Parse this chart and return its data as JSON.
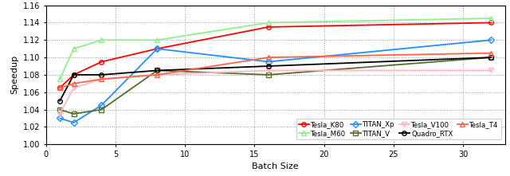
{
  "x": [
    1,
    2,
    4,
    8,
    16,
    32
  ],
  "series": {
    "Tesla_K80": {
      "y": [
        1.065,
        1.08,
        1.095,
        1.11,
        1.135,
        1.14
      ],
      "color": "#ff0000",
      "marker": "o",
      "linewidth": 1.3,
      "markersize": 4
    },
    "Tesla_M60": {
      "y": [
        1.075,
        1.11,
        1.12,
        1.12,
        1.14,
        1.145
      ],
      "color": "#90ee90",
      "marker": "^",
      "linewidth": 1.3,
      "markersize": 4
    },
    "TITAN_Xp": {
      "y": [
        1.03,
        1.025,
        1.045,
        1.11,
        1.095,
        1.12
      ],
      "color": "#1e90ff",
      "marker": "D",
      "linewidth": 1.3,
      "markersize": 4
    },
    "TITAN_V": {
      "y": [
        1.04,
        1.035,
        1.04,
        1.085,
        1.08,
        1.1
      ],
      "color": "#556b2f",
      "marker": "s",
      "linewidth": 1.3,
      "markersize": 4
    },
    "Tesla_V100": {
      "y": [
        1.035,
        1.065,
        1.075,
        1.08,
        1.085,
        1.085
      ],
      "color": "#ffb6c1",
      "marker": "v",
      "linewidth": 1.3,
      "markersize": 4
    },
    "Quadro_RTX": {
      "y": [
        1.05,
        1.08,
        1.08,
        1.085,
        1.09,
        1.1
      ],
      "color": "#000000",
      "marker": "o",
      "linewidth": 1.3,
      "markersize": 4
    },
    "Tesla_T4": {
      "y": [
        1.065,
        1.07,
        1.075,
        1.08,
        1.1,
        1.105
      ],
      "color": "#ff6347",
      "marker": "^",
      "linewidth": 1.3,
      "markersize": 4
    }
  },
  "legend_row1": [
    "Tesla_K80",
    "Tesla_M60",
    "TITAN_Xp",
    "TITAN_V"
  ],
  "legend_row2": [
    "Tesla_V100",
    "Quadro_RTX",
    "Tesla_T4"
  ],
  "legend_labels": {
    "Tesla_K80": "Tesla_K80",
    "Tesla_M60": "Tesla_M60",
    "TITAN_Xp": "TITAN_Xp",
    "TITAN_V": "TITAN_V",
    "Tesla_V100": "Tesla_V100",
    "Quadro_RTX": "Quadro_RTX",
    "Tesla_T4": "Tesla_T4"
  },
  "xlabel": "Batch Size",
  "ylabel": "Speedup",
  "ylim": [
    1.0,
    1.16
  ],
  "yticks": [
    1.0,
    1.02,
    1.04,
    1.06,
    1.08,
    1.1,
    1.12,
    1.14,
    1.16
  ],
  "xlim": [
    0,
    33
  ],
  "xticks": [
    0,
    5,
    10,
    15,
    20,
    25,
    30
  ],
  "background_color": "#ffffff"
}
